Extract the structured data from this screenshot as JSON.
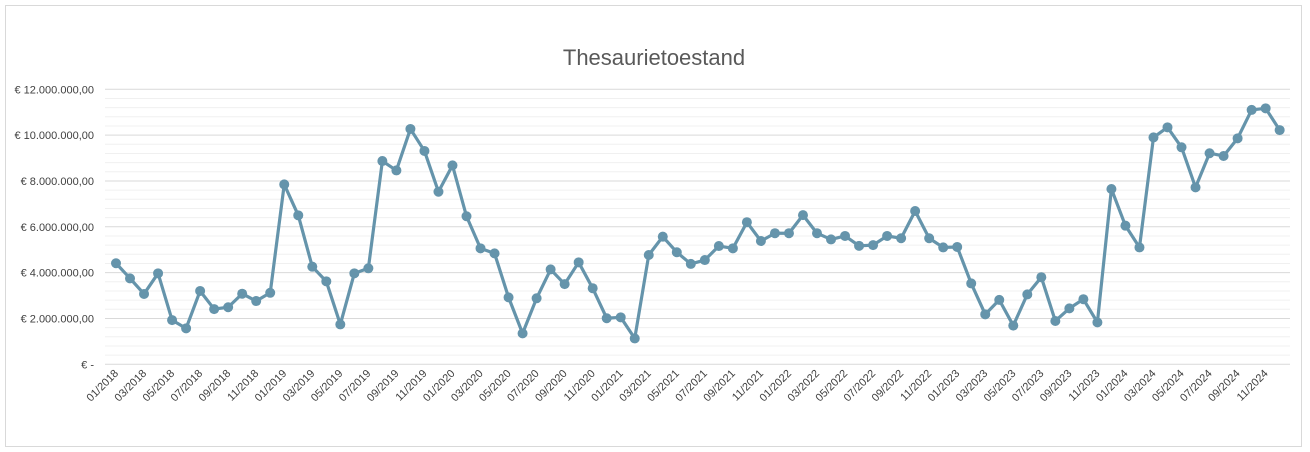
{
  "chart_data": {
    "type": "line",
    "title": "Thesaurietoestand",
    "xlabel": "",
    "ylabel": "",
    "ylim": [
      0,
      12000000
    ],
    "grid": true,
    "legend": "none",
    "line_color": "#6594ab",
    "marker": "circle",
    "y_ticks": [
      {
        "value": 0,
        "label": "€ -"
      },
      {
        "value": 2000000,
        "label": "€ 2.000.000,00"
      },
      {
        "value": 4000000,
        "label": "€ 4.000.000,00"
      },
      {
        "value": 6000000,
        "label": "€ 6.000.000,00"
      },
      {
        "value": 8000000,
        "label": "€ 8.000.000,00"
      },
      {
        "value": 10000000,
        "label": "€ 10.000.000,00"
      },
      {
        "value": 12000000,
        "label": "€ 12.000.000,00"
      }
    ],
    "x_tick_labels": [
      "01/2018",
      "03/2018",
      "05/2018",
      "07/2018",
      "09/2018",
      "11/2018",
      "01/2019",
      "03/2019",
      "05/2019",
      "07/2019",
      "09/2019",
      "11/2019",
      "01/2020",
      "03/2020",
      "05/2020",
      "07/2020",
      "09/2020",
      "11/2020",
      "01/2021",
      "03/2021",
      "05/2021",
      "07/2021",
      "09/2021",
      "11/2021",
      "01/2022",
      "03/2022",
      "05/2022",
      "07/2022",
      "09/2022",
      "11/2022",
      "01/2023",
      "03/2023",
      "05/2023",
      "07/2023",
      "09/2023",
      "11/2023",
      "01/2024",
      "03/2024",
      "05/2024",
      "07/2024",
      "09/2024",
      "11/2024"
    ],
    "x_start": "01/2018",
    "x_end": "12/2024",
    "x_interval": "monthly",
    "values": [
      4410000,
      3750000,
      3070000,
      3970000,
      1930000,
      1570000,
      3200000,
      2410000,
      2490000,
      3080000,
      2760000,
      3120000,
      7850000,
      6500000,
      4260000,
      3620000,
      1740000,
      3970000,
      4190000,
      8870000,
      8460000,
      10270000,
      9310000,
      7530000,
      8680000,
      6460000,
      5060000,
      4840000,
      2920000,
      1350000,
      2880000,
      4140000,
      3500000,
      4450000,
      3320000,
      2010000,
      2050000,
      1130000,
      4770000,
      5570000,
      4890000,
      4380000,
      4550000,
      5160000,
      5060000,
      6200000,
      5380000,
      5720000,
      5720000,
      6510000,
      5720000,
      5450000,
      5600000,
      5170000,
      5200000,
      5600000,
      5500000,
      6690000,
      5500000,
      5100000,
      5120000,
      3530000,
      2180000,
      2810000,
      1690000,
      3050000,
      3800000,
      1890000,
      2440000,
      2840000,
      1830000,
      7650000,
      6050000,
      5100000,
      9900000,
      10340000,
      9470000,
      7720000,
      9210000,
      9090000,
      9860000,
      11100000,
      11170000,
      10220000
    ]
  }
}
